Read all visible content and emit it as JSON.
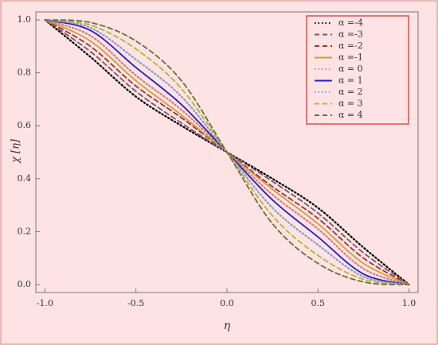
{
  "chart_data": {
    "type": "line",
    "xlabel": "η",
    "ylabel": "χ [η]",
    "x": [
      -1,
      -0.75,
      -0.5,
      -0.25,
      0,
      0.25,
      0.5,
      0.75,
      1
    ],
    "xlim": [
      -1.05,
      1.05
    ],
    "ylim": [
      -0.03,
      1.03
    ],
    "xticks": [
      {
        "value": -1,
        "label": "-1.0"
      },
      {
        "value": -0.5,
        "label": "-0.5"
      },
      {
        "value": 0,
        "label": "0.0"
      },
      {
        "value": 0.5,
        "label": "0.5"
      },
      {
        "value": 1,
        "label": "1.0"
      }
    ],
    "yticks": [
      {
        "value": 0,
        "label": "0.0"
      },
      {
        "value": 0.2,
        "label": "0.2"
      },
      {
        "value": 0.4,
        "label": "0.4"
      },
      {
        "value": 0.6,
        "label": "0.6"
      },
      {
        "value": 0.8,
        "label": "0.8"
      },
      {
        "value": 1,
        "label": "1.0"
      }
    ],
    "legend": "top-right",
    "series": [
      {
        "name": "α =-4",
        "color": "#000000",
        "style": "dotted",
        "values": [
          1,
          0.86,
          0.71,
          0.6,
          0.5,
          0.4,
          0.29,
          0.14,
          0
        ]
      },
      {
        "name": "α =-3",
        "color": "#6e5a6e",
        "style": "dashed",
        "values": [
          1,
          0.88,
          0.73,
          0.61,
          0.5,
          0.39,
          0.27,
          0.12,
          0
        ]
      },
      {
        "name": "α =-2",
        "color": "#a0322d",
        "style": "dashed",
        "values": [
          1,
          0.9,
          0.75,
          0.63,
          0.5,
          0.37,
          0.25,
          0.1,
          0
        ]
      },
      {
        "name": "α =-1",
        "color": "#c8a03c",
        "style": "solid",
        "values": [
          1,
          0.92,
          0.77,
          0.64,
          0.5,
          0.36,
          0.23,
          0.08,
          0
        ]
      },
      {
        "name": "α = 0",
        "color": "#e07878",
        "style": "dotted",
        "values": [
          1,
          0.94,
          0.79,
          0.66,
          0.5,
          0.34,
          0.21,
          0.06,
          0
        ]
      },
      {
        "name": "α = 1",
        "color": "#2020c8",
        "style": "solid",
        "values": [
          1,
          0.96,
          0.82,
          0.68,
          0.5,
          0.32,
          0.18,
          0.04,
          0
        ]
      },
      {
        "name": "α = 2",
        "color": "#8c9cc8",
        "style": "dotted",
        "values": [
          1,
          0.97,
          0.85,
          0.71,
          0.5,
          0.29,
          0.15,
          0.03,
          0
        ]
      },
      {
        "name": "α = 3",
        "color": "#b4b43c",
        "style": "dashed",
        "values": [
          1,
          0.98,
          0.89,
          0.74,
          0.5,
          0.26,
          0.11,
          0.02,
          0
        ]
      },
      {
        "name": "α = 4",
        "color": "#6e6e32",
        "style": "dashed",
        "values": [
          1,
          0.99,
          0.92,
          0.77,
          0.5,
          0.23,
          0.08,
          0.01,
          0
        ]
      }
    ]
  }
}
